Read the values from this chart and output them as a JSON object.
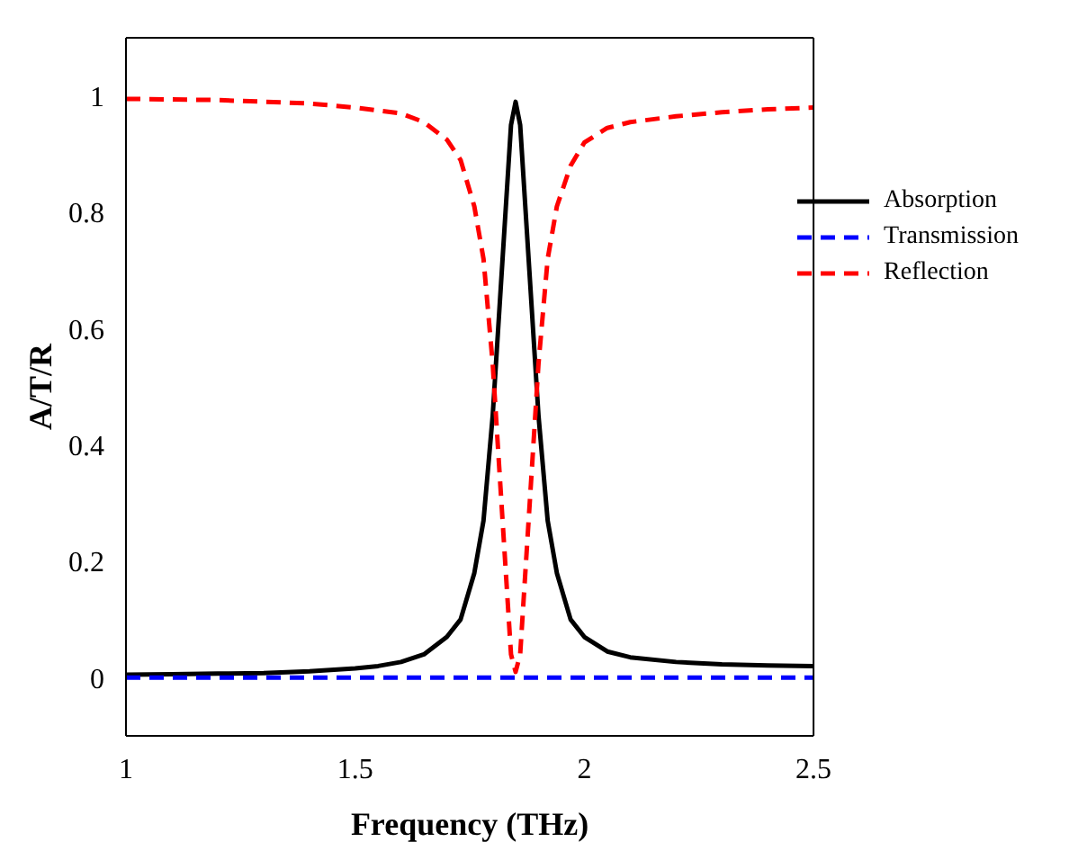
{
  "chart_data": {
    "type": "line",
    "xlabel": "Frequency (THz)",
    "ylabel": "A/T/R",
    "x": [
      1,
      1.1,
      1.2,
      1.3,
      1.4,
      1.5,
      1.55,
      1.6,
      1.65,
      1.7,
      1.73,
      1.76,
      1.78,
      1.8,
      1.82,
      1.84,
      1.85,
      1.86,
      1.88,
      1.9,
      1.92,
      1.94,
      1.97,
      2.0,
      2.05,
      2.1,
      2.2,
      2.3,
      2.4,
      2.5
    ],
    "series": [
      {
        "name": "Absorption",
        "color": "#000000",
        "line_style": "solid",
        "values": [
          0.005,
          0.006,
          0.007,
          0.008,
          0.011,
          0.016,
          0.02,
          0.027,
          0.04,
          0.07,
          0.1,
          0.18,
          0.27,
          0.45,
          0.7,
          0.95,
          0.99,
          0.95,
          0.7,
          0.45,
          0.27,
          0.18,
          0.1,
          0.07,
          0.045,
          0.035,
          0.027,
          0.023,
          0.021,
          0.02
        ]
      },
      {
        "name": "Transmission",
        "color": "#0000ff",
        "line_style": "dashed",
        "values": [
          0,
          0,
          0,
          0,
          0,
          0,
          0,
          0,
          0,
          0,
          0,
          0,
          0,
          0,
          0,
          0,
          0,
          0,
          0,
          0,
          0,
          0,
          0,
          0,
          0,
          0,
          0,
          0,
          0,
          0
        ]
      },
      {
        "name": "Reflection",
        "color": "#ff0000",
        "line_style": "dashed",
        "values": [
          0.995,
          0.994,
          0.993,
          0.99,
          0.987,
          0.98,
          0.975,
          0.97,
          0.955,
          0.925,
          0.89,
          0.81,
          0.72,
          0.54,
          0.29,
          0.04,
          0.01,
          0.04,
          0.29,
          0.54,
          0.72,
          0.81,
          0.88,
          0.92,
          0.945,
          0.955,
          0.965,
          0.972,
          0.977,
          0.98
        ]
      }
    ],
    "xlim": [
      1,
      2.5
    ],
    "xticks": [
      1,
      1.5,
      2,
      2.5
    ],
    "ylim": [
      -0.1,
      1.1
    ],
    "yticks": [
      0,
      0.2,
      0.4,
      0.6,
      0.8,
      1
    ],
    "grid": false,
    "legend": "top right",
    "marker": "none"
  }
}
